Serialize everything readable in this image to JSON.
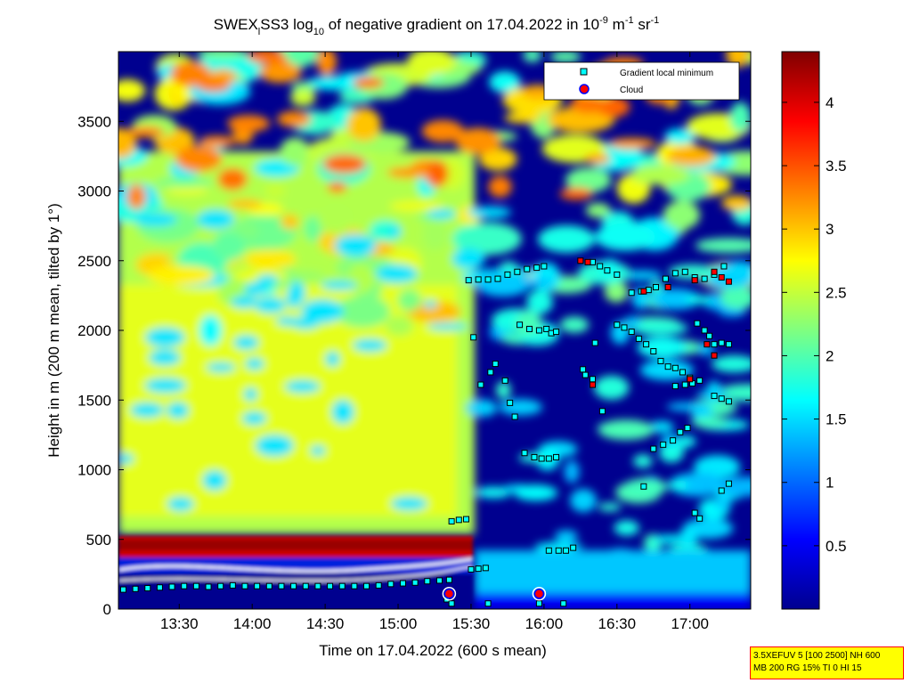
{
  "chart_data": {
    "type": "heatmap",
    "title": {
      "prefix": "SWEX",
      "sub_l": "l",
      "main": "SS3 log",
      "sub_10": "10",
      "middle": " of negative gradient on 17.04.2022 in 10",
      "sup_m9": "-9",
      "unit_m": " m",
      "sup_m1a": "-1",
      "unit_sr": " sr",
      "sup_m1b": "-1"
    },
    "xlabel": "Time on 17.04.2022 (600 s mean)",
    "ylabel": "Height in m (200 m mean, tilted by 1°)",
    "x_ticks": [
      "13:30",
      "14:00",
      "14:30",
      "15:00",
      "15:30",
      "16:00",
      "16:30",
      "17:00"
    ],
    "x_tick_values_min": [
      810,
      840,
      870,
      900,
      930,
      960,
      990,
      1020
    ],
    "xlim_min": [
      785,
      1045
    ],
    "y_ticks": [
      "0",
      "500",
      "1000",
      "1500",
      "2000",
      "2500",
      "3000",
      "3500"
    ],
    "y_tick_values": [
      0,
      500,
      1000,
      1500,
      2000,
      2500,
      3000,
      3500
    ],
    "ylim": [
      0,
      4000
    ],
    "colorbar": {
      "ticks": [
        "0.5",
        "1",
        "1.5",
        "2",
        "2.5",
        "3",
        "3.5",
        "4"
      ],
      "tick_values": [
        0.5,
        1,
        1.5,
        2,
        2.5,
        3,
        3.5,
        4
      ],
      "range": [
        0,
        4.4
      ],
      "colormap": "jet"
    },
    "legend": {
      "placement": "top-right",
      "entries": [
        {
          "label": "Gradient local minimum",
          "marker": "square",
          "color": "#00ffff"
        },
        {
          "label": "Cloud",
          "marker": "circle",
          "color": "#ff0000"
        }
      ]
    },
    "series": [
      {
        "name": "Gradient local minimum",
        "points": [
          [
            787,
            140
          ],
          [
            792,
            145
          ],
          [
            797,
            150
          ],
          [
            802,
            155
          ],
          [
            807,
            160
          ],
          [
            812,
            165
          ],
          [
            817,
            165
          ],
          [
            822,
            160
          ],
          [
            827,
            165
          ],
          [
            832,
            170
          ],
          [
            837,
            165
          ],
          [
            842,
            165
          ],
          [
            847,
            165
          ],
          [
            852,
            165
          ],
          [
            857,
            165
          ],
          [
            862,
            165
          ],
          [
            867,
            165
          ],
          [
            872,
            165
          ],
          [
            877,
            165
          ],
          [
            882,
            165
          ],
          [
            887,
            165
          ],
          [
            892,
            170
          ],
          [
            897,
            180
          ],
          [
            902,
            185
          ],
          [
            907,
            190
          ],
          [
            912,
            200
          ],
          [
            917,
            205
          ],
          [
            921,
            210
          ],
          [
            922,
            630
          ],
          [
            925,
            640
          ],
          [
            928,
            645
          ],
          [
            930,
            285
          ],
          [
            933,
            290
          ],
          [
            936,
            295
          ],
          [
            920,
            70
          ],
          [
            922,
            40
          ],
          [
            937,
            40
          ],
          [
            929,
            2360
          ],
          [
            933,
            2365
          ],
          [
            937,
            2365
          ],
          [
            941,
            2370
          ],
          [
            945,
            2400
          ],
          [
            949,
            2420
          ],
          [
            953,
            2440
          ],
          [
            957,
            2450
          ],
          [
            960,
            2460
          ],
          [
            931,
            1950
          ],
          [
            934,
            1610
          ],
          [
            938,
            1700
          ],
          [
            940,
            1760
          ],
          [
            944,
            1640
          ],
          [
            946,
            1480
          ],
          [
            948,
            1380
          ],
          [
            950,
            2040
          ],
          [
            954,
            2010
          ],
          [
            958,
            2000
          ],
          [
            961,
            2010
          ],
          [
            963,
            1980
          ],
          [
            965,
            1990
          ],
          [
            952,
            1120
          ],
          [
            956,
            1090
          ],
          [
            959,
            1080
          ],
          [
            962,
            1080
          ],
          [
            965,
            1090
          ],
          [
            962,
            420
          ],
          [
            966,
            420
          ],
          [
            969,
            420
          ],
          [
            972,
            440
          ],
          [
            958,
            40
          ],
          [
            968,
            40
          ],
          [
            980,
            2490
          ],
          [
            983,
            2460
          ],
          [
            986,
            2430
          ],
          [
            990,
            2400
          ],
          [
            977,
            1680
          ],
          [
            980,
            1650
          ],
          [
            984,
            1420
          ],
          [
            976,
            1720
          ],
          [
            981,
            1910
          ],
          [
            990,
            2040
          ],
          [
            993,
            2020
          ],
          [
            996,
            1990
          ],
          [
            999,
            1940
          ],
          [
            1002,
            1900
          ],
          [
            1005,
            1850
          ],
          [
            1008,
            1780
          ],
          [
            1011,
            1740
          ],
          [
            1014,
            1730
          ],
          [
            1017,
            1700
          ],
          [
            1020,
            1660
          ],
          [
            996,
            2270
          ],
          [
            1000,
            2280
          ],
          [
            1003,
            2290
          ],
          [
            1006,
            2310
          ],
          [
            1010,
            2370
          ],
          [
            1014,
            2410
          ],
          [
            1018,
            2420
          ],
          [
            1022,
            2380
          ],
          [
            1026,
            2370
          ],
          [
            1030,
            2400
          ],
          [
            1034,
            2460
          ],
          [
            1001,
            880
          ],
          [
            1005,
            1150
          ],
          [
            1009,
            1180
          ],
          [
            1013,
            1210
          ],
          [
            1016,
            1270
          ],
          [
            1019,
            1300
          ],
          [
            1014,
            1600
          ],
          [
            1018,
            1610
          ],
          [
            1021,
            1620
          ],
          [
            1024,
            1640
          ],
          [
            1022,
            690
          ],
          [
            1024,
            650
          ],
          [
            1023,
            2050
          ],
          [
            1026,
            2000
          ],
          [
            1028,
            1960
          ],
          [
            1030,
            1900
          ],
          [
            1033,
            1910
          ],
          [
            1036,
            1900
          ],
          [
            1030,
            1530
          ],
          [
            1033,
            1510
          ],
          [
            1036,
            1490
          ],
          [
            1033,
            850
          ],
          [
            1036,
            900
          ]
        ]
      },
      {
        "name": "Cloud",
        "points": [
          [
            921,
            110
          ],
          [
            958,
            110
          ],
          [
            1001,
            2280
          ],
          [
            1011,
            2310
          ],
          [
            1022,
            2360
          ],
          [
            1030,
            2420
          ],
          [
            1033,
            2380
          ],
          [
            1036,
            2350
          ],
          [
            975,
            2500
          ],
          [
            978,
            2490
          ],
          [
            1027,
            1900
          ],
          [
            1030,
            1820
          ],
          [
            1020,
            1650
          ],
          [
            980,
            1610
          ]
        ]
      }
    ]
  },
  "footnote": {
    "line1": "3.5XEFUV 5 [100 2500] NH 600",
    "line2": "MB 200 RG 15% TI 0 HI 15"
  }
}
